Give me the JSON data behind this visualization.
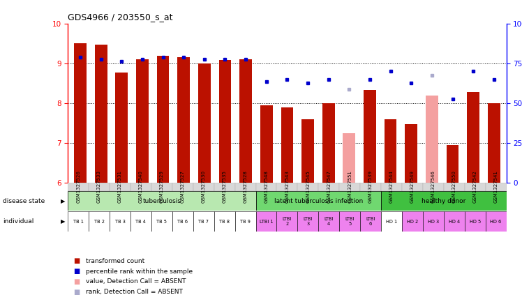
{
  "title": "GDS4966 / 203550_s_at",
  "ylim": [
    6,
    10
  ],
  "ylim_right": [
    0,
    100
  ],
  "yticks_left": [
    6,
    7,
    8,
    9,
    10
  ],
  "yticks_right": [
    0,
    25,
    50,
    75,
    100
  ],
  "samples": [
    "GSM1327526",
    "GSM1327533",
    "GSM1327531",
    "GSM1327540",
    "GSM1327529",
    "GSM1327527",
    "GSM1327530",
    "GSM1327535",
    "GSM1327528",
    "GSM1327548",
    "GSM1327543",
    "GSM1327545",
    "GSM1327547",
    "GSM1327551",
    "GSM1327539",
    "GSM1327544",
    "GSM1327549",
    "GSM1327546",
    "GSM1327550",
    "GSM1327542",
    "GSM1327541"
  ],
  "bar_values": [
    9.51,
    9.48,
    8.78,
    9.1,
    9.19,
    9.15,
    9.0,
    9.08,
    9.1,
    7.95,
    7.9,
    7.6,
    8.0,
    7.25,
    8.33,
    7.6,
    7.48,
    8.2,
    6.95,
    8.28,
    8.0
  ],
  "bar_absent": [
    false,
    false,
    false,
    false,
    false,
    false,
    false,
    false,
    false,
    false,
    false,
    false,
    false,
    true,
    false,
    false,
    false,
    true,
    false,
    false,
    false
  ],
  "rank_values": [
    9.15,
    9.1,
    9.05,
    9.1,
    9.15,
    9.15,
    9.1,
    9.1,
    9.1,
    8.55,
    8.6,
    8.5,
    8.6,
    8.35,
    8.6,
    8.8,
    8.5,
    8.7,
    8.1,
    8.8,
    8.6
  ],
  "rank_absent": [
    false,
    false,
    false,
    false,
    false,
    false,
    false,
    false,
    false,
    false,
    false,
    false,
    false,
    true,
    false,
    false,
    false,
    true,
    false,
    false,
    false
  ],
  "bar_color_present": "#bb1100",
  "bar_color_absent": "#f4a0a0",
  "rank_color_present": "#0000cc",
  "rank_color_absent": "#aaaacc",
  "individual_labels": [
    "TB 1",
    "TB 2",
    "TB 3",
    "TB 4",
    "TB 5",
    "TB 6",
    "TB 7",
    "TB 8",
    "TB 9",
    "LTBI 1",
    "LTBI\n2",
    "LTBI\n3",
    "LTBI\n4",
    "LTBI\n5",
    "LTBI\n6",
    "HD 1",
    "HD 2",
    "HD 3",
    "HD 4",
    "HD 5",
    "HD 6"
  ],
  "ind_bg": [
    "#ffffff",
    "#ffffff",
    "#ffffff",
    "#ffffff",
    "#ffffff",
    "#ffffff",
    "#ffffff",
    "#ffffff",
    "#ffffff",
    "#ee82ee",
    "#ee82ee",
    "#ee82ee",
    "#ee82ee",
    "#ee82ee",
    "#ee82ee",
    "#ffffff",
    "#ee82ee",
    "#ee82ee",
    "#ee82ee",
    "#ee82ee",
    "#ee82ee"
  ],
  "ds_groups": [
    {
      "label": "tuberculosis",
      "start": 0,
      "end": 9,
      "color": "#b8e8b0"
    },
    {
      "label": "latent tuberculosis infection",
      "start": 9,
      "end": 15,
      "color": "#70d870"
    },
    {
      "label": "healthy donor",
      "start": 15,
      "end": 21,
      "color": "#40c040"
    }
  ]
}
